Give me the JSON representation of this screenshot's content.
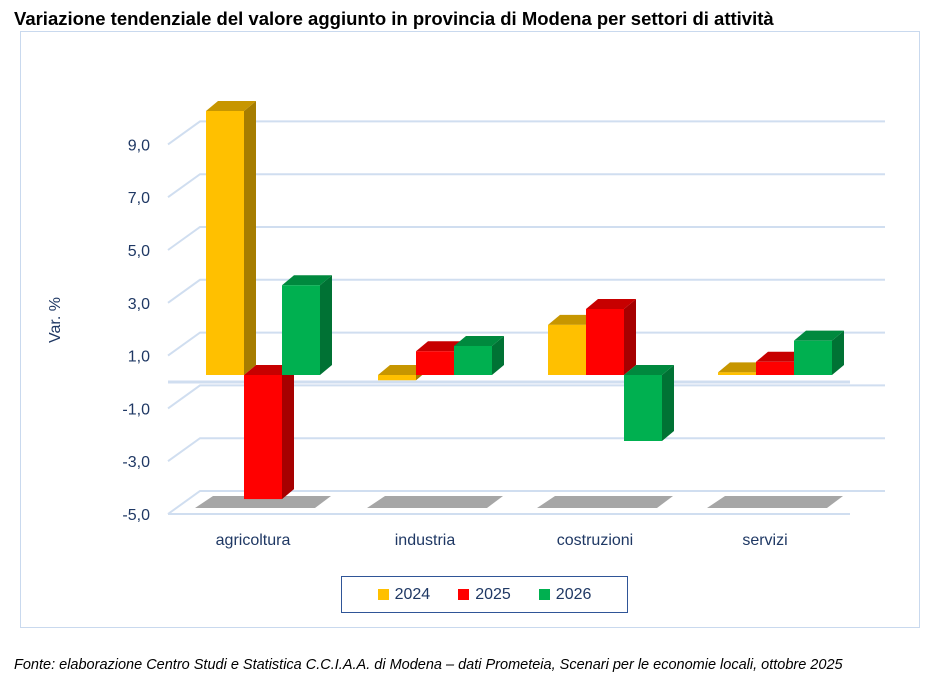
{
  "title": "Variazione tendenziale del valore aggiunto in provincia di Modena per settori di attività",
  "source": "Fonte: elaborazione Centro Studi e Statistica C.C.I.A.A. di Modena – dati Prometeia, Scenari per le economie locali, ottobre 2025",
  "chart_data": {
    "type": "bar",
    "style": "3d-clustered-column",
    "title": "Variazione tendenziale del valore aggiunto in provincia di Modena per settori di attività",
    "ylabel": "Var. %",
    "xlabel": "",
    "ylim": [
      -5,
      10
    ],
    "yticks": [
      -5,
      -3,
      -1,
      1,
      3,
      5,
      7,
      9
    ],
    "ytick_labels": [
      "-5,0",
      "-3,0",
      "-1,0",
      "1,0",
      "3,0",
      "5,0",
      "7,0",
      "9,0"
    ],
    "grid": true,
    "legend": "bottom",
    "categories": [
      "agricoltura",
      "industria",
      "costruzioni",
      "servizi"
    ],
    "series": [
      {
        "name": "2024",
        "color": "#ffc000",
        "values": [
          10.0,
          -0.2,
          1.9,
          0.1
        ]
      },
      {
        "name": "2025",
        "color": "#ff0000",
        "values": [
          -4.7,
          0.9,
          2.5,
          0.5
        ]
      },
      {
        "name": "2026",
        "color": "#00b050",
        "values": [
          3.4,
          1.1,
          -2.5,
          1.3
        ]
      }
    ]
  }
}
